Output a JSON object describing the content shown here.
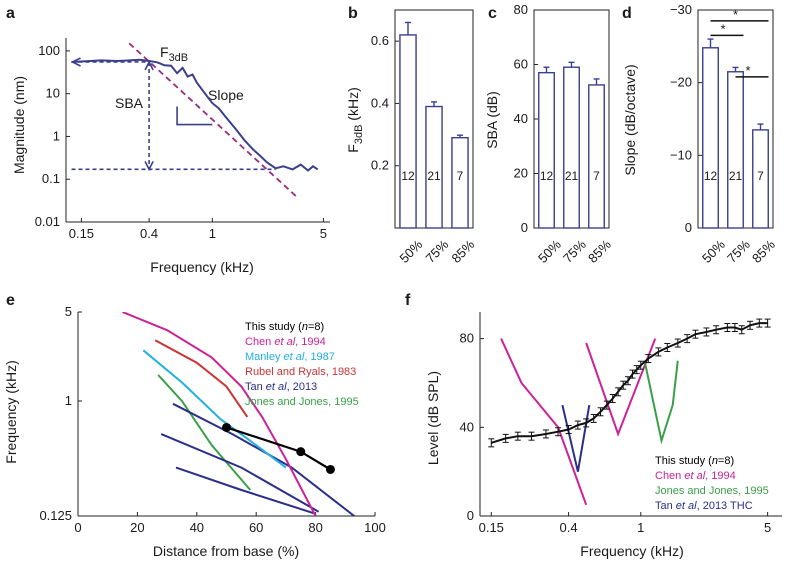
{
  "chart_data": [
    {
      "panel": "a",
      "type": "line",
      "xscale": "log",
      "yscale": "log",
      "xlabel": "Frequency (kHz)",
      "ylabel": "Magnitude (nm)",
      "xticks": [
        0.15,
        0.4,
        1,
        5
      ],
      "xtick_labels": [
        "0.15",
        "0.4",
        "1",
        "5"
      ],
      "yticks": [
        0.01,
        0.1,
        1,
        10,
        100
      ],
      "ytick_labels": [
        "0.01",
        "0.1",
        "1",
        "10",
        "100"
      ],
      "xlim": [
        0.12,
        5.5
      ],
      "ylim": [
        0.01,
        200
      ],
      "annotations": {
        "f3db_main": "F",
        "f3db_sub": "3dB",
        "sba": "SBA",
        "slope": "Slope"
      },
      "series": [
        {
          "name": "magnitude",
          "x": [
            0.13,
            0.16,
            0.2,
            0.25,
            0.3,
            0.35,
            0.4,
            0.45,
            0.5,
            0.55,
            0.6,
            0.65,
            0.7,
            0.75,
            0.8,
            0.9,
            1.0,
            1.1,
            1.2,
            1.4,
            1.6,
            1.8,
            2.0,
            2.2,
            2.5,
            2.8,
            3.2,
            3.6,
            4.0,
            4.3,
            4.6
          ],
          "y": [
            55,
            57,
            60,
            58,
            60,
            62,
            58,
            54,
            46,
            45,
            30,
            40,
            25,
            28,
            18,
            10,
            6,
            4.5,
            3,
            1.5,
            0.8,
            0.5,
            0.35,
            0.25,
            0.18,
            0.2,
            0.17,
            0.22,
            0.16,
            0.2,
            0.17
          ]
        },
        {
          "name": "slope_fit",
          "x": [
            0.3,
            3.5
          ],
          "y": [
            150,
            0.035
          ]
        }
      ]
    },
    {
      "panel": "b",
      "type": "bar",
      "ylabel_main": "F",
      "ylabel_sub": "3dB",
      "ylabel_unit": " (kHz)",
      "categories": [
        "50%",
        "75%",
        "85%"
      ],
      "values": [
        0.62,
        0.39,
        0.29
      ],
      "errors": [
        0.04,
        0.015,
        0.008
      ],
      "counts": [
        "12",
        "21",
        "7"
      ],
      "yticks": [
        0.2,
        0.4,
        0.6
      ],
      "ytick_labels": [
        "0.2",
        "0.4",
        "0.6"
      ],
      "ylim": [
        0,
        0.7
      ]
    },
    {
      "panel": "c",
      "type": "bar",
      "ylabel": "SBA (dB)",
      "categories": [
        "50%",
        "75%",
        "85%"
      ],
      "values": [
        57,
        59,
        52.5
      ],
      "errors": [
        2,
        1.8,
        2.2
      ],
      "counts": [
        "12",
        "21",
        "7"
      ],
      "yticks": [
        0,
        20,
        40,
        60,
        80
      ],
      "ytick_labels": [
        "0",
        "20",
        "40",
        "60",
        "80"
      ],
      "ylim": [
        0,
        80
      ]
    },
    {
      "panel": "d",
      "type": "bar",
      "ylabel": "Slope (dB/octave)",
      "categories": [
        "50%",
        "75%",
        "85%"
      ],
      "values": [
        -24.8,
        -21.5,
        -13.5
      ],
      "errors": [
        1.2,
        0.6,
        0.8
      ],
      "counts": [
        "12",
        "21",
        "7"
      ],
      "yticks": [
        0,
        -10,
        -20,
        -30
      ],
      "ytick_labels": [
        "0",
        "−10",
        "−20",
        "−30"
      ],
      "ylim": [
        0,
        -30
      ],
      "significance_label": "*",
      "significance": [
        {
          "from": 0,
          "to": 1
        },
        {
          "from": 0,
          "to": 2
        },
        {
          "from": 1,
          "to": 2
        }
      ]
    },
    {
      "panel": "e",
      "type": "line",
      "yscale": "log",
      "xlabel": "Distance from base (%)",
      "ylabel": "Frequency (kHz)",
      "xticks": [
        0,
        20,
        40,
        60,
        80,
        100
      ],
      "xtick_labels": [
        "0",
        "20",
        "40",
        "60",
        "80",
        "100"
      ],
      "yticks": [
        0.125,
        1,
        5
      ],
      "ytick_labels": [
        "0.125",
        "1",
        "5"
      ],
      "xlim": [
        0,
        100
      ],
      "ylim": [
        0.125,
        5
      ],
      "legend": [
        {
          "text": "This study (",
          "italic": "n",
          "after": "=8)",
          "color": "#000000"
        },
        {
          "text": "Chen ",
          "italic": "et al",
          "after": ", 1994",
          "color": "#cc2299"
        },
        {
          "text": "Manley ",
          "italic": "et al",
          "after": ", 1987",
          "color": "#22b0e0"
        },
        {
          "text": "Rubel and Ryals, 1983",
          "italic": "",
          "after": "",
          "color": "#cc3333"
        },
        {
          "text": "Tan ",
          "italic": "et al",
          "after": ", 2013",
          "color": "#2a2f8a"
        },
        {
          "text": "Jones and Jones, 1995",
          "italic": "",
          "after": "",
          "color": "#3aa048"
        }
      ],
      "series": [
        {
          "name": "This study",
          "color": "#000000",
          "x": [
            50,
            75,
            85
          ],
          "y": [
            0.62,
            0.4,
            0.29
          ],
          "markers": true
        },
        {
          "name": "Chen et al, 1994",
          "color": "#cc2299",
          "x": [
            15,
            30,
            45,
            55,
            62,
            70,
            80
          ],
          "y": [
            5,
            3.6,
            2.2,
            1.3,
            0.75,
            0.35,
            0.125
          ]
        },
        {
          "name": "Manley et al, 1987",
          "color": "#22b0e0",
          "x": [
            22,
            35,
            48,
            60,
            70
          ],
          "y": [
            2.5,
            1.4,
            0.72,
            0.45,
            0.3
          ]
        },
        {
          "name": "Rubel and Ryals, 1983",
          "color": "#cc3333",
          "x": [
            26,
            40,
            50,
            57
          ],
          "y": [
            3,
            2.0,
            1.3,
            0.75
          ]
        },
        {
          "name": "Tan et al, 2013 upper",
          "color": "#2a2f8a",
          "x": [
            32,
            52,
            72,
            93
          ],
          "y": [
            0.95,
            0.55,
            0.3,
            0.125
          ]
        },
        {
          "name": "Tan et al, 2013 middle",
          "color": "#2a2f8a",
          "x": [
            28,
            55,
            81
          ],
          "y": [
            0.55,
            0.3,
            0.135
          ]
        },
        {
          "name": "Tan et al, 2013 lower",
          "color": "#2a2f8a",
          "x": [
            33,
            55,
            80
          ],
          "y": [
            0.3,
            0.2,
            0.13
          ]
        },
        {
          "name": "Jones and Jones, 1995",
          "color": "#3aa048",
          "x": [
            27,
            35,
            45,
            58
          ],
          "y": [
            1.6,
            1.0,
            0.45,
            0.2
          ]
        }
      ]
    },
    {
      "panel": "f",
      "type": "line",
      "xscale": "log",
      "xlabel": "Frequency (kHz)",
      "ylabel": "Level (dB SPL)",
      "xticks": [
        0.15,
        0.4,
        1,
        5
      ],
      "xtick_labels": [
        "0.15",
        "0.4",
        "1",
        "5"
      ],
      "yticks": [
        0,
        40,
        80
      ],
      "ytick_labels": [
        "0",
        "40",
        "80"
      ],
      "xlim": [
        0.13,
        6
      ],
      "ylim": [
        0,
        92
      ],
      "legend": [
        {
          "text": "This study (",
          "italic": "n",
          "after": "=8)",
          "color": "#000000"
        },
        {
          "text": "Chen ",
          "italic": "et al",
          "after": ", 1994",
          "color": "#cc2299"
        },
        {
          "text": "Jones and Jones, 1995",
          "italic": "",
          "after": "",
          "color": "#3aa048"
        },
        {
          "text": "Tan ",
          "italic": "et al",
          "after": ", 2013 THC",
          "color": "#2a2f8a"
        }
      ],
      "series": [
        {
          "name": "This study",
          "color": "#000000",
          "errorbars": true,
          "x": [
            0.15,
            0.18,
            0.21,
            0.25,
            0.3,
            0.35,
            0.4,
            0.45,
            0.5,
            0.55,
            0.6,
            0.65,
            0.7,
            0.75,
            0.8,
            0.85,
            0.9,
            0.95,
            1.0,
            1.1,
            1.25,
            1.4,
            1.6,
            1.8,
            2.0,
            2.3,
            2.6,
            3.0,
            3.3,
            3.6,
            4.0,
            4.5,
            5.0
          ],
          "y": [
            33,
            35,
            36,
            36,
            37,
            38,
            39,
            41,
            42,
            44,
            47,
            50,
            53,
            56,
            59,
            61,
            64,
            66,
            68,
            71,
            74,
            76,
            78,
            80,
            82,
            83,
            84,
            85,
            85,
            84,
            86,
            87,
            87
          ]
        },
        {
          "name": "Chen et al, 1994 left",
          "color": "#cc2299",
          "x": [
            0.17,
            0.22,
            0.35,
            0.5
          ],
          "y": [
            80,
            60,
            40,
            5
          ]
        },
        {
          "name": "Chen et al, 1994 right",
          "color": "#cc2299",
          "x": [
            0.5,
            0.75,
            1.2
          ],
          "y": [
            78,
            37,
            80
          ]
        },
        {
          "name": "Jones and Jones, 1995",
          "color": "#3aa048",
          "x": [
            1.05,
            1.3,
            1.5,
            1.6
          ],
          "y": [
            70,
            34,
            50,
            70
          ]
        },
        {
          "name": "Tan et al, 2013 THC",
          "color": "#2a2f8a",
          "x": [
            0.37,
            0.45,
            0.52
          ],
          "y": [
            50,
            20,
            50
          ]
        }
      ]
    }
  ]
}
